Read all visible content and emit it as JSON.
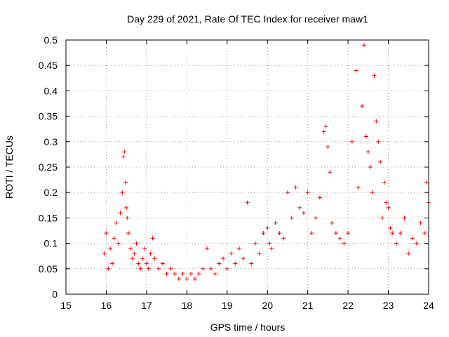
{
  "chart_data": {
    "type": "scatter",
    "title": "Day 229 of 2021, Rate Of TEC Index for receiver maw1",
    "xlabel": "GPS time / hours",
    "ylabel": "ROTI / TECUs",
    "xlim": [
      15,
      24
    ],
    "ylim": [
      0,
      0.5
    ],
    "xticks": [
      "15",
      "16",
      "17",
      "18",
      "19",
      "20",
      "21",
      "22",
      "23",
      "24"
    ],
    "yticks": [
      "0",
      "0.05",
      "0.1",
      "0.15",
      "0.2",
      "0.25",
      "0.3",
      "0.35",
      "0.4",
      "0.45",
      "0.5"
    ],
    "grid": true,
    "marker": "plus",
    "color": "#ff0000",
    "series": [
      {
        "x": [
          15.95,
          16.0,
          16.05,
          16.1,
          16.15,
          16.2,
          16.25,
          16.3,
          16.35,
          16.4,
          16.42,
          16.45,
          16.48,
          16.5,
          16.52,
          16.55,
          16.6,
          16.65,
          16.7,
          16.75,
          16.8,
          16.85,
          16.9,
          16.95,
          17.0,
          17.05,
          17.1,
          17.15,
          17.2,
          17.3,
          17.4,
          17.5,
          17.6,
          17.7,
          17.8,
          17.9,
          18.0,
          18.1,
          18.2,
          18.3,
          18.4,
          18.5,
          18.6,
          18.7,
          18.8,
          18.9,
          19.0,
          19.1,
          19.2,
          19.3,
          19.4,
          19.5,
          19.6,
          19.7,
          19.8,
          19.9,
          20.0,
          20.05,
          20.1,
          20.2,
          20.3,
          20.4,
          20.5,
          20.6,
          20.7,
          20.8,
          20.9,
          21.0,
          21.1,
          21.2,
          21.3,
          21.4,
          21.45,
          21.5,
          21.55,
          21.6,
          21.7,
          21.8,
          21.9,
          22.0,
          22.1,
          22.2,
          22.25,
          22.35,
          22.4,
          22.45,
          22.5,
          22.55,
          22.6,
          22.65,
          22.7,
          22.75,
          22.8,
          22.85,
          22.9,
          22.95,
          23.0,
          23.05,
          23.1,
          23.2,
          23.3,
          23.4,
          23.5,
          23.6,
          23.7,
          23.8,
          23.9,
          23.95,
          24.0
        ],
        "y": [
          0.08,
          0.12,
          0.05,
          0.09,
          0.06,
          0.11,
          0.14,
          0.1,
          0.16,
          0.2,
          0.27,
          0.28,
          0.22,
          0.17,
          0.15,
          0.12,
          0.09,
          0.07,
          0.08,
          0.1,
          0.06,
          0.05,
          0.07,
          0.09,
          0.06,
          0.05,
          0.08,
          0.11,
          0.07,
          0.05,
          0.06,
          0.04,
          0.05,
          0.04,
          0.03,
          0.04,
          0.03,
          0.04,
          0.03,
          0.04,
          0.05,
          0.09,
          0.05,
          0.04,
          0.06,
          0.07,
          0.05,
          0.08,
          0.06,
          0.09,
          0.07,
          0.18,
          0.06,
          0.1,
          0.08,
          0.12,
          0.13,
          0.1,
          0.09,
          0.14,
          0.12,
          0.11,
          0.2,
          0.15,
          0.21,
          0.17,
          0.16,
          0.2,
          0.12,
          0.15,
          0.19,
          0.32,
          0.33,
          0.29,
          0.24,
          0.14,
          0.12,
          0.11,
          0.1,
          0.12,
          0.3,
          0.44,
          0.21,
          0.37,
          0.49,
          0.31,
          0.28,
          0.25,
          0.2,
          0.43,
          0.34,
          0.3,
          0.26,
          0.15,
          0.22,
          0.18,
          0.17,
          0.13,
          0.12,
          0.1,
          0.12,
          0.15,
          0.08,
          0.11,
          0.1,
          0.14,
          0.12,
          0.22,
          0.18
        ]
      }
    ]
  }
}
